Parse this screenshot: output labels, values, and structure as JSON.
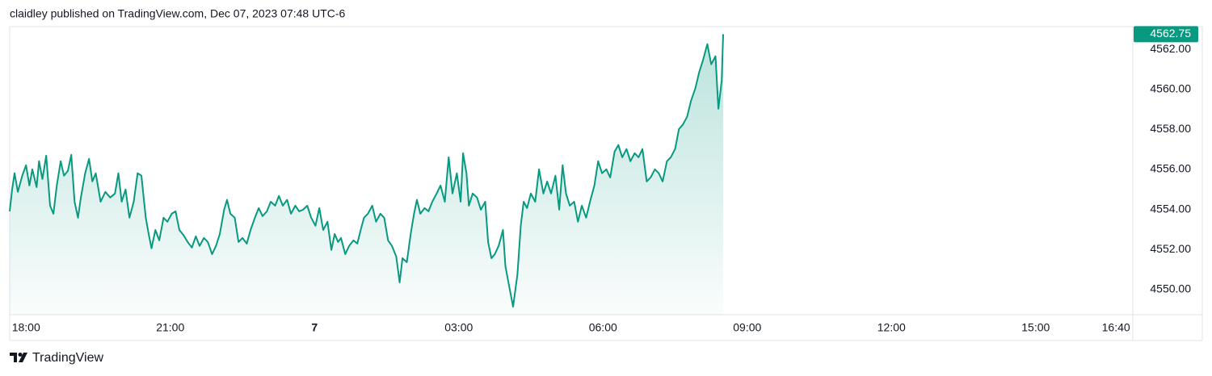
{
  "chart_data": {
    "type": "area",
    "title": "claidley published on TradingView.com, Dec 07, 2023 07:48 UTC-6",
    "brand": "TradingView",
    "color": "#089981",
    "xlim": [
      -0.34,
      23.02
    ],
    "ylim": [
      4548.75,
      4563.13
    ],
    "xticks": [
      {
        "value": 0,
        "label": "18:00"
      },
      {
        "value": 3,
        "label": "21:00"
      },
      {
        "value": 6,
        "label": "7",
        "bold": true
      },
      {
        "value": 9,
        "label": "03:00"
      },
      {
        "value": 12,
        "label": "06:00"
      },
      {
        "value": 15,
        "label": "09:00"
      },
      {
        "value": 18,
        "label": "12:00"
      },
      {
        "value": 21,
        "label": "15:00"
      },
      {
        "value": 22.67,
        "label": "16:40"
      }
    ],
    "yticks": [
      {
        "value": 4550,
        "label": "4550.00"
      },
      {
        "value": 4552,
        "label": "4552.00"
      },
      {
        "value": 4554,
        "label": "4554.00"
      },
      {
        "value": 4556,
        "label": "4556.00"
      },
      {
        "value": 4558,
        "label": "4558.00"
      },
      {
        "value": 4560,
        "label": "4560.00"
      },
      {
        "value": 4562,
        "label": "4562.00"
      }
    ],
    "series": [
      {
        "x": [
          -0.34,
          -0.29,
          -0.24,
          -0.17,
          -0.08,
          0.0,
          0.07,
          0.13,
          0.22,
          0.27,
          0.34,
          0.42,
          0.5,
          0.57,
          0.64,
          0.72,
          0.79,
          0.87,
          0.94,
          1.01,
          1.08,
          1.14,
          1.23,
          1.31,
          1.38,
          1.45,
          1.55,
          1.65,
          1.75,
          1.85,
          1.92,
          1.99,
          2.07,
          2.15,
          2.24,
          2.32,
          2.4,
          2.49,
          2.55,
          2.61,
          2.69,
          2.77,
          2.86,
          2.94,
          3.03,
          3.11,
          3.19,
          3.28,
          3.36,
          3.45,
          3.53,
          3.61,
          3.7,
          3.78,
          3.87,
          3.95,
          4.03,
          4.12,
          4.18,
          4.25,
          4.34,
          4.42,
          4.5,
          4.59,
          4.67,
          4.76,
          4.84,
          4.92,
          5.01,
          5.09,
          5.18,
          5.26,
          5.34,
          5.43,
          5.51,
          5.6,
          5.68,
          5.76,
          5.85,
          5.93,
          6.02,
          6.1,
          6.18,
          6.27,
          6.35,
          6.42,
          6.49,
          6.55,
          6.64,
          6.72,
          6.81,
          6.89,
          6.96,
          7.03,
          7.11,
          7.2,
          7.28,
          7.37,
          7.45,
          7.53,
          7.61,
          7.7,
          7.77,
          7.83,
          7.92,
          8.0,
          8.07,
          8.13,
          8.2,
          8.29,
          8.37,
          8.45,
          8.54,
          8.62,
          8.71,
          8.79,
          8.87,
          8.96,
          9.04,
          9.09,
          9.16,
          9.21,
          9.29,
          9.38,
          9.46,
          9.55,
          9.61,
          9.68,
          9.75,
          9.83,
          9.92,
          9.97,
          10.05,
          10.13,
          10.22,
          10.29,
          10.35,
          10.42,
          10.5,
          10.59,
          10.67,
          10.76,
          10.84,
          10.92,
          11.01,
          11.09,
          11.16,
          11.23,
          11.31,
          11.4,
          11.48,
          11.56,
          11.65,
          11.73,
          11.82,
          11.9,
          11.98,
          12.07,
          12.15,
          12.24,
          12.32,
          12.4,
          12.49,
          12.57,
          12.66,
          12.74,
          12.82,
          12.91,
          12.99,
          13.08,
          13.16,
          13.24,
          13.33,
          13.41,
          13.5,
          13.58,
          13.66,
          13.75,
          13.83,
          13.92,
          14.0,
          14.08,
          14.17,
          14.25,
          14.34,
          14.4,
          14.47,
          14.5
        ],
        "values": [
          4553.91,
          4555.0,
          4555.81,
          4554.88,
          4555.69,
          4556.21,
          4555.2,
          4556.01,
          4555.12,
          4556.41,
          4555.52,
          4556.69,
          4554.19,
          4553.79,
          4555.2,
          4556.41,
          4555.69,
          4555.93,
          4556.73,
          4554.39,
          4553.59,
          4554.6,
          4555.81,
          4556.53,
          4555.4,
          4555.81,
          4554.39,
          4554.88,
          4554.6,
          4554.8,
          4555.81,
          4554.39,
          4555.0,
          4553.59,
          4554.39,
          4555.81,
          4555.69,
          4553.59,
          4552.78,
          4552.06,
          4552.98,
          4552.46,
          4553.59,
          4553.39,
          4553.79,
          4553.91,
          4552.98,
          4552.7,
          4552.38,
          4552.1,
          4552.66,
          4552.18,
          4552.58,
          4552.38,
          4551.77,
          4552.18,
          4552.78,
          4553.99,
          4554.48,
          4553.79,
          4553.59,
          4552.38,
          4552.58,
          4552.3,
          4552.98,
          4553.59,
          4554.07,
          4553.67,
          4553.91,
          4554.39,
          4554.19,
          4554.68,
          4554.19,
          4554.48,
          4553.79,
          4554.19,
          4553.91,
          4553.99,
          4554.19,
          4553.59,
          4553.19,
          4554.07,
          4552.98,
          4553.39,
          4551.98,
          4552.78,
          4552.38,
          4552.58,
          4551.77,
          4552.18,
          4552.46,
          4552.3,
          4552.98,
          4553.59,
          4553.79,
          4554.19,
          4553.39,
          4553.79,
          4553.59,
          4552.46,
          4552.18,
          4551.65,
          4550.36,
          4551.57,
          4551.37,
          4552.78,
          4553.79,
          4554.48,
          4553.79,
          4554.07,
          4553.91,
          4554.39,
          4554.8,
          4555.2,
          4554.39,
          4556.61,
          4554.8,
          4555.81,
          4554.39,
          4556.81,
          4555.81,
          4554.19,
          4554.8,
          4554.6,
          4553.99,
          4554.39,
          4552.38,
          4551.57,
          4551.77,
          4552.18,
          4552.98,
          4551.17,
          4550.16,
          4549.15,
          4550.77,
          4553.19,
          4554.39,
          4554.07,
          4554.8,
          4554.39,
          4556.01,
          4554.8,
          4555.4,
          4554.8,
          4555.69,
          4553.99,
          4556.21,
          4554.8,
          4554.19,
          4554.39,
          4553.39,
          4554.19,
          4553.59,
          4554.39,
          4555.2,
          4556.41,
          4555.81,
          4556.01,
          4555.6,
          4556.89,
          4557.22,
          4556.61,
          4557.02,
          4556.41,
          4556.81,
          4556.61,
          4557.02,
          4555.4,
          4555.6,
          4556.01,
          4555.81,
          4555.4,
          4556.41,
          4556.61,
          4557.02,
          4558.02,
          4558.23,
          4558.63,
          4559.43,
          4560.04,
          4560.85,
          4561.45,
          4562.26,
          4561.25,
          4561.65,
          4559.03,
          4560.44,
          4562.75
        ]
      }
    ]
  }
}
